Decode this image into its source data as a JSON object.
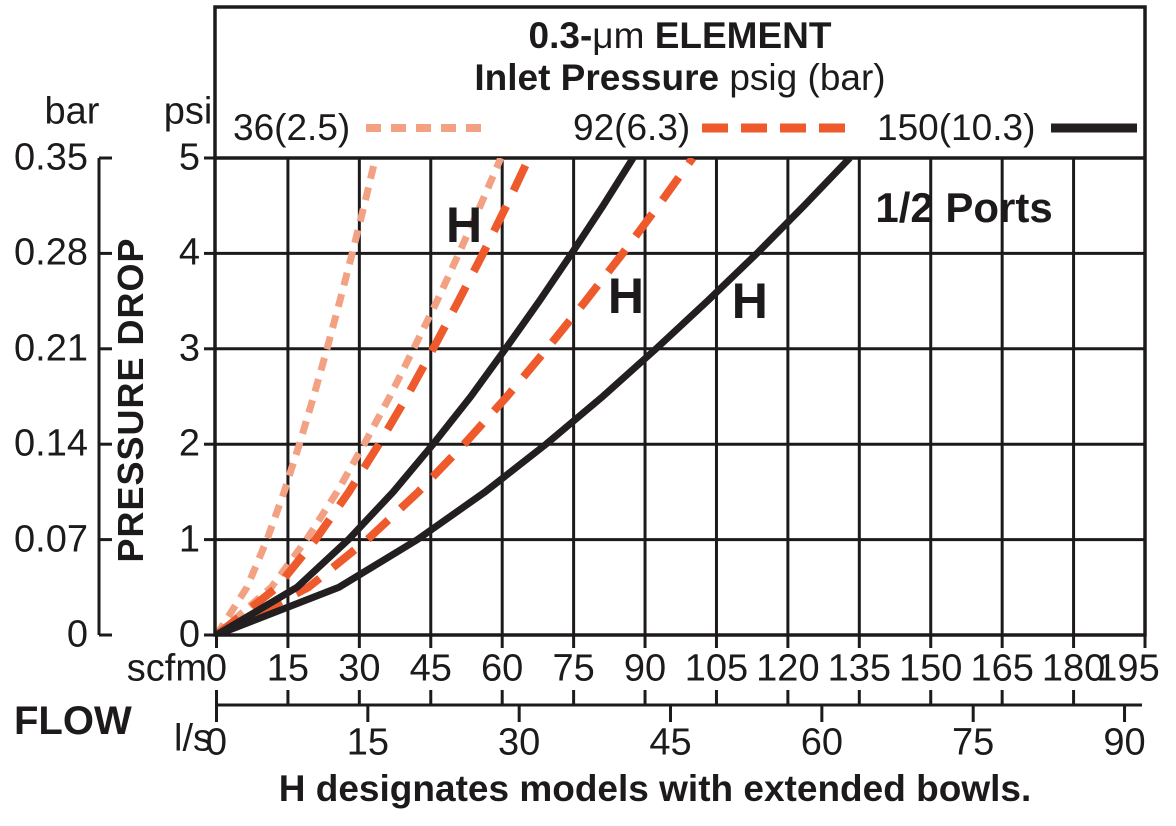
{
  "chart_data": {
    "type": "line",
    "title": {
      "bold_prefix": "0.3-",
      "mu": "μm",
      "bold_suffix": " ELEMENT"
    },
    "subtitle": {
      "bold": "Inlet Pressure",
      "normal": " psig (bar)"
    },
    "ports_label": "1/2 Ports",
    "caption": "H designates models with extended bowls.",
    "ylabel": "PRESSURE DROP",
    "flow_label": "FLOW",
    "legend": [
      {
        "label": "36(2.5)",
        "color": "#F2A183",
        "dash": "dotted"
      },
      {
        "label": "92(6.3)",
        "color": "#EE5A2B",
        "dash": "dashed"
      },
      {
        "label": "150(10.3)",
        "color": "#231F20",
        "dash": "solid"
      }
    ],
    "y_axis_psi": {
      "header": "psi",
      "ticks": [
        0,
        1,
        2,
        3,
        4,
        5
      ],
      "range": [
        0,
        5
      ]
    },
    "y_axis_bar": {
      "header": "bar",
      "ticks": [
        "0",
        "0.07",
        "0.14",
        "0.21",
        "0.28",
        "0.35"
      ]
    },
    "x_axis_scfm": {
      "header": "scfm",
      "ticks": [
        0,
        15,
        30,
        45,
        60,
        75,
        90,
        105,
        120,
        135,
        150,
        165,
        180,
        195
      ],
      "range": [
        0,
        195
      ]
    },
    "x_axis_ls": {
      "header": "l/s",
      "ticks": [
        0,
        15,
        30,
        45,
        60,
        75,
        90
      ],
      "scfm_per_unit": 2.1189
    },
    "grid": {
      "x_step_scfm": 15,
      "y_step_psi": 1
    },
    "h_labels": [
      {
        "text": "H",
        "scfm": 52,
        "psi": 4.3
      },
      {
        "text": "H",
        "scfm": 86,
        "psi": 3.55
      },
      {
        "text": "H",
        "scfm": 112,
        "psi": 3.5
      }
    ],
    "ports_pos": {
      "scfm": 157,
      "psi": 4.48
    },
    "series": [
      {
        "name": "36(2.5)",
        "inlet_pressure": "36 psig (2.5 bar)",
        "model": "standard",
        "color": "#F2A183",
        "dash": "dotted",
        "points": [
          [
            0,
            0
          ],
          [
            6.4,
            0.5
          ],
          [
            10.6,
            1
          ],
          [
            14.2,
            1.5
          ],
          [
            17.4,
            2
          ],
          [
            20.4,
            2.5
          ],
          [
            23.2,
            3
          ],
          [
            25.9,
            3.5
          ],
          [
            28.5,
            4
          ],
          [
            31,
            4.5
          ],
          [
            33.4,
            5
          ]
        ]
      },
      {
        "name": "36(2.5) H",
        "inlet_pressure": "36 psig (2.5 bar)",
        "model": "H extended bowl",
        "color": "#F2A183",
        "dash": "dotted",
        "points": [
          [
            0,
            0
          ],
          [
            11.5,
            0.5
          ],
          [
            18.9,
            1
          ],
          [
            25.3,
            1.5
          ],
          [
            31,
            2
          ],
          [
            36.4,
            2.5
          ],
          [
            41.4,
            3
          ],
          [
            46.3,
            3.5
          ],
          [
            50.9,
            4
          ],
          [
            55.4,
            4.5
          ],
          [
            59.7,
            5
          ]
        ]
      },
      {
        "name": "92(6.3)",
        "inlet_pressure": "92 psig (6.3 bar)",
        "model": "standard",
        "color": "#EE5A2B",
        "dash": "dashed",
        "points": [
          [
            0,
            0
          ],
          [
            12.7,
            0.5
          ],
          [
            20.8,
            1
          ],
          [
            27.8,
            1.5
          ],
          [
            34.1,
            2
          ],
          [
            40,
            2.5
          ],
          [
            45.5,
            3
          ],
          [
            50.8,
            3.5
          ],
          [
            56,
            4
          ],
          [
            60.9,
            4.5
          ],
          [
            65.6,
            5
          ]
        ]
      },
      {
        "name": "92(6.3) H",
        "inlet_pressure": "92 psig (6.3 bar)",
        "model": "H extended bowl",
        "color": "#EE5A2B",
        "dash": "dashed",
        "points": [
          [
            0,
            0
          ],
          [
            19.3,
            0.5
          ],
          [
            31.7,
            1
          ],
          [
            42.4,
            1.5
          ],
          [
            52,
            2
          ],
          [
            61,
            2.5
          ],
          [
            69.4,
            3
          ],
          [
            77.5,
            3.5
          ],
          [
            85.3,
            4
          ],
          [
            92.8,
            4.5
          ],
          [
            100,
            5
          ]
        ]
      },
      {
        "name": "150(10.3)",
        "inlet_pressure": "150 psig (10.3 bar)",
        "model": "standard",
        "color": "#231F20",
        "dash": "solid",
        "points": [
          [
            0,
            0
          ],
          [
            16.9,
            0.5
          ],
          [
            27.7,
            1
          ],
          [
            37.1,
            1.5
          ],
          [
            45.5,
            2
          ],
          [
            53.4,
            2.5
          ],
          [
            60.7,
            3
          ],
          [
            67.8,
            3.5
          ],
          [
            74.6,
            4
          ],
          [
            81.2,
            4.5
          ],
          [
            87.5,
            5
          ]
        ]
      },
      {
        "name": "150(10.3) H",
        "inlet_pressure": "150 psig (10.3 bar)",
        "model": "H extended bowl",
        "color": "#231F20",
        "dash": "solid",
        "points": [
          [
            0,
            0
          ],
          [
            25.7,
            0.5
          ],
          [
            42.2,
            1
          ],
          [
            56.4,
            1.5
          ],
          [
            69.2,
            2
          ],
          [
            81.1,
            2.5
          ],
          [
            92.3,
            3
          ],
          [
            103.1,
            3.5
          ],
          [
            113.5,
            4
          ],
          [
            123.4,
            4.5
          ],
          [
            133,
            5
          ]
        ]
      }
    ]
  }
}
